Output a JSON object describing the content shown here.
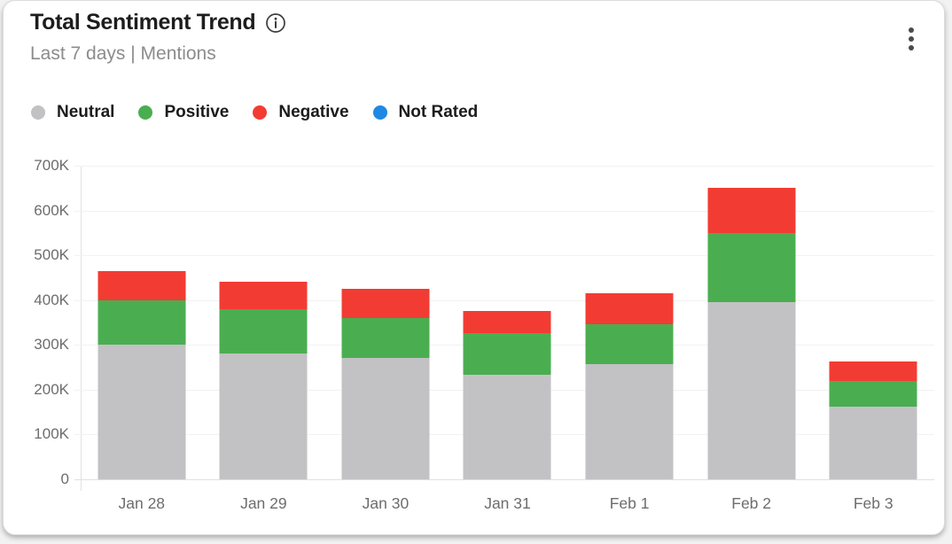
{
  "header": {
    "title": "Total Sentiment Trend",
    "subtitle": "Last 7 days | Mentions",
    "info_icon": "info-circle-icon",
    "menu_icon": "kebab-menu-icon"
  },
  "legend": {
    "position": "top",
    "items": [
      {
        "label": "Neutral",
        "color": "#c2c2c4"
      },
      {
        "label": "Positive",
        "color": "#4aae50"
      },
      {
        "label": "Negative",
        "color": "#f23c33"
      },
      {
        "label": "Not Rated",
        "color": "#1e88e5"
      }
    ]
  },
  "chart_data": {
    "type": "bar",
    "stacked": true,
    "title": "Total Sentiment Trend",
    "subtitle": "Last 7 days | Mentions",
    "unit": "Mentions",
    "categories": [
      "Jan 28",
      "Jan 29",
      "Jan 30",
      "Jan 31",
      "Feb 1",
      "Feb 2",
      "Feb 3"
    ],
    "series": [
      {
        "name": "Neutral",
        "color": "#c2c2c4",
        "values": [
          300000,
          280000,
          270000,
          233000,
          258000,
          395000,
          162000
        ]
      },
      {
        "name": "Positive",
        "color": "#4aae50",
        "values": [
          100000,
          100000,
          90000,
          93000,
          88000,
          155000,
          58000
        ]
      },
      {
        "name": "Negative",
        "color": "#f23c33",
        "values": [
          65000,
          62000,
          65000,
          49000,
          69000,
          100000,
          43000
        ]
      },
      {
        "name": "Not Rated",
        "color": "#1e88e5",
        "values": [
          0,
          0,
          0,
          0,
          0,
          0,
          0
        ]
      }
    ],
    "totals": [
      465000,
      442000,
      425000,
      375000,
      415000,
      650000,
      263000
    ],
    "ylim": [
      0,
      700000
    ],
    "ytick_step": 100000,
    "ytick_labels": [
      "0",
      "100K",
      "200K",
      "300K",
      "400K",
      "500K",
      "600K",
      "700K"
    ],
    "grid": true,
    "legend_position": "top"
  }
}
